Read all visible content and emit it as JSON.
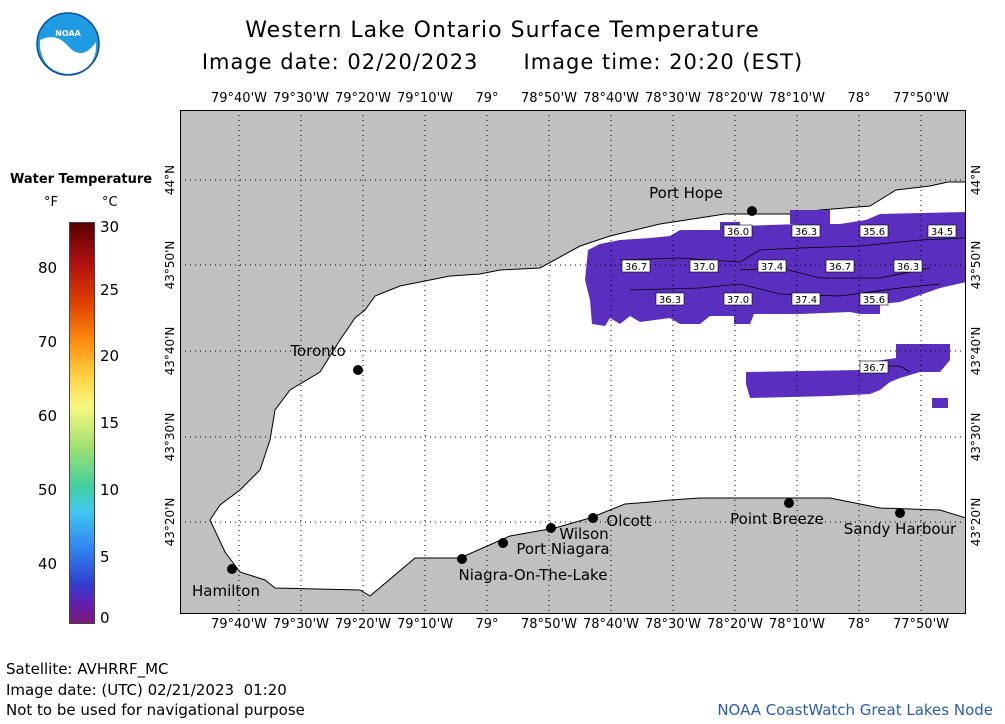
{
  "header": {
    "title": "Western Lake Ontario Surface Temperature",
    "image_date": "Image date: 02/20/2023",
    "image_time": "Image time: 20:20 (EST)"
  },
  "logo": {
    "text": "NOAA"
  },
  "legend": {
    "title": "Water Temperature",
    "unit_f": "°F",
    "unit_c": "°C",
    "ticks_c": [
      "30",
      "25",
      "20",
      "15",
      "10",
      "5",
      "0"
    ],
    "ticks_f": [
      "80",
      "70",
      "60",
      "50",
      "40"
    ]
  },
  "map": {
    "lon_labels": [
      "79°40'W",
      "79°30'W",
      "79°20'W",
      "79°10'W",
      "79°",
      "78°50'W",
      "78°40'W",
      "78°30'W",
      "78°20'W",
      "78°10'W",
      "78°",
      "77°50'W"
    ],
    "lat_labels": [
      "44°N",
      "43°50'N",
      "43°40'N",
      "43°30'N",
      "43°20'N"
    ],
    "places": [
      "Port Hope",
      "Toronto",
      "Hamilton",
      "Niagra-On-The-Lake",
      "Port Niagara",
      "Wilson",
      "Olcott",
      "Point Breeze",
      "Sandy Harbour"
    ],
    "temp_labels": [
      "36.0",
      "36.3",
      "35.6",
      "34.5",
      "36.7",
      "37.0",
      "37.4",
      "36.7",
      "36.3",
      "36.3",
      "37.0",
      "37.4",
      "35.6",
      "36.7"
    ],
    "colors": {
      "land": "#c0c0c0",
      "water": "#ffffff",
      "cold_water": "#5a2fc0",
      "grid": "#000000"
    }
  },
  "footer": {
    "satellite": "Satellite: AVHRRF_MC",
    "utc_date": "Image date: (UTC) 02/21/2023  01:20",
    "disclaimer": "Not to be used for navigational purpose",
    "credit": "NOAA CoastWatch Great Lakes Node"
  }
}
